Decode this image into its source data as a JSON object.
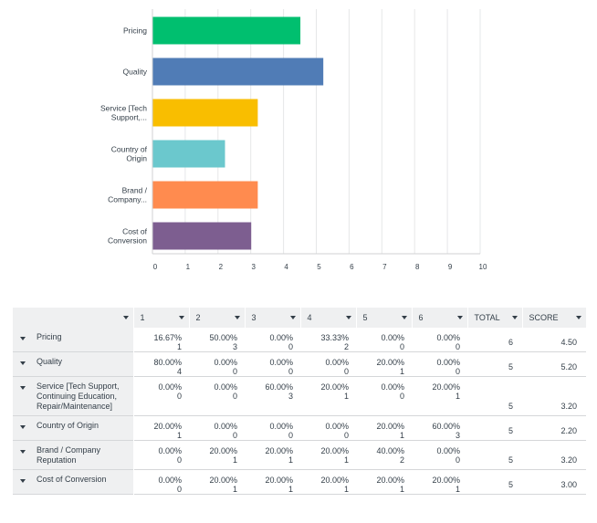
{
  "chart_data": {
    "type": "bar",
    "orientation": "horizontal",
    "categories": [
      "Pricing",
      "Quality",
      "Service [Tech Support,...",
      "Country of Origin",
      "Brand / Company...",
      "Cost of Conversion"
    ],
    "category_lines": [
      [
        "Pricing"
      ],
      [
        "Quality"
      ],
      [
        "Service [Tech",
        "Support,..."
      ],
      [
        "Country of",
        "Origin"
      ],
      [
        "Brand /",
        "Company..."
      ],
      [
        "Cost of",
        "Conversion"
      ]
    ],
    "values": [
      4.5,
      5.2,
      3.2,
      2.2,
      3.2,
      3.0
    ],
    "colors": [
      "#00bf6f",
      "#507cb6",
      "#f9be00",
      "#6bc8cd",
      "#ff8b4f",
      "#7d5e90"
    ],
    "xlim": [
      0,
      10
    ],
    "ticks": [
      0,
      1,
      2,
      3,
      4,
      5,
      6,
      7,
      8,
      9,
      10
    ],
    "grid": true,
    "legend": "none"
  },
  "table": {
    "headers": [
      "1",
      "2",
      "3",
      "4",
      "5",
      "6",
      "TOTAL",
      "SCORE"
    ],
    "rows": [
      {
        "label": "Pricing",
        "cells": [
          [
            "16.67%",
            "1"
          ],
          [
            "50.00%",
            "3"
          ],
          [
            "0.00%",
            "0"
          ],
          [
            "33.33%",
            "2"
          ],
          [
            "0.00%",
            "0"
          ],
          [
            "0.00%",
            "0"
          ]
        ],
        "total": "6",
        "score": "4.50"
      },
      {
        "label": "Quality",
        "cells": [
          [
            "80.00%",
            "4"
          ],
          [
            "0.00%",
            "0"
          ],
          [
            "0.00%",
            "0"
          ],
          [
            "0.00%",
            "0"
          ],
          [
            "20.00%",
            "1"
          ],
          [
            "0.00%",
            "0"
          ]
        ],
        "total": "5",
        "score": "5.20"
      },
      {
        "label": "Service [Tech Support, Continuing Education, Repair/Maintenance]",
        "cells": [
          [
            "0.00%",
            "0"
          ],
          [
            "0.00%",
            "0"
          ],
          [
            "60.00%",
            "3"
          ],
          [
            "20.00%",
            "1"
          ],
          [
            "0.00%",
            "0"
          ],
          [
            "20.00%",
            "1"
          ]
        ],
        "total": "5",
        "score": "3.20"
      },
      {
        "label": "Country of Origin",
        "cells": [
          [
            "20.00%",
            "1"
          ],
          [
            "0.00%",
            "0"
          ],
          [
            "0.00%",
            "0"
          ],
          [
            "0.00%",
            "0"
          ],
          [
            "20.00%",
            "1"
          ],
          [
            "60.00%",
            "3"
          ]
        ],
        "total": "5",
        "score": "2.20"
      },
      {
        "label": "Brand / Company Reputation",
        "cells": [
          [
            "0.00%",
            "0"
          ],
          [
            "20.00%",
            "1"
          ],
          [
            "20.00%",
            "1"
          ],
          [
            "20.00%",
            "1"
          ],
          [
            "40.00%",
            "2"
          ],
          [
            "0.00%",
            "0"
          ]
        ],
        "total": "5",
        "score": "3.20"
      },
      {
        "label": "Cost of Conversion",
        "cells": [
          [
            "0.00%",
            "0"
          ],
          [
            "20.00%",
            "1"
          ],
          [
            "20.00%",
            "1"
          ],
          [
            "20.00%",
            "1"
          ],
          [
            "20.00%",
            "1"
          ],
          [
            "20.00%",
            "1"
          ]
        ],
        "total": "5",
        "score": "3.00"
      }
    ]
  }
}
